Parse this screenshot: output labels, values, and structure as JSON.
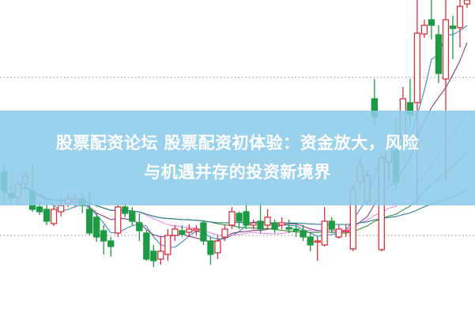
{
  "banner": {
    "title_line1": "股票配资论坛 股票配资初体验：资金放大，风险",
    "title_line2": "与机遇并存的投资新境界",
    "background_color": "#8cccea"
  },
  "chart_data": {
    "type": "candlestick",
    "title": "",
    "xlabel": "",
    "ylabel": "",
    "ylim": [
      0,
      40
    ],
    "grid": false,
    "up_color": "#d9323c",
    "down_color": "#1e9a45",
    "reference_levels": [
      30.2,
      10.2
    ],
    "moving_averages": [
      {
        "period": 5,
        "color": "#3f8fb5"
      },
      {
        "period": 10,
        "color": "#8a3a7e"
      },
      {
        "period": 20,
        "color": "#e38fe0"
      },
      {
        "period": 30,
        "color": "#3a8f3a"
      },
      {
        "period": 60,
        "color": "#2f7f8f"
      }
    ],
    "candles": [
      {
        "o": 18.2,
        "c": 15.8,
        "h": 19.2,
        "l": 14.2
      },
      {
        "o": 15.5,
        "c": 15.0,
        "h": 16.5,
        "l": 14.4
      },
      {
        "o": 15.0,
        "c": 16.7,
        "h": 17.2,
        "l": 14.2
      },
      {
        "o": 16.8,
        "c": 17.8,
        "h": 18.2,
        "l": 16.0
      },
      {
        "o": 15.8,
        "c": 13.5,
        "h": 19.2,
        "l": 13.2
      },
      {
        "o": 13.8,
        "c": 13.2,
        "h": 14.5,
        "l": 12.8
      },
      {
        "o": 13.5,
        "c": 12.0,
        "h": 14.2,
        "l": 11.5
      },
      {
        "o": 11.7,
        "c": 13.5,
        "h": 14.2,
        "l": 11.4
      },
      {
        "o": 13.2,
        "c": 14.0,
        "h": 15.0,
        "l": 12.6
      },
      {
        "o": 14.2,
        "c": 14.8,
        "h": 15.5,
        "l": 13.8
      },
      {
        "o": 14.4,
        "c": 14.8,
        "h": 15.4,
        "l": 13.8
      },
      {
        "o": 14.8,
        "c": 14.0,
        "h": 15.7,
        "l": 13.0
      },
      {
        "o": 13.5,
        "c": 10.5,
        "h": 15.7,
        "l": 10.2
      },
      {
        "o": 12.5,
        "c": 10.0,
        "h": 13.0,
        "l": 9.4
      },
      {
        "o": 10.8,
        "c": 9.5,
        "h": 11.5,
        "l": 7.8
      },
      {
        "o": 9.5,
        "c": 8.8,
        "h": 10.0,
        "l": 7.5
      },
      {
        "o": 10.5,
        "c": 13.8,
        "h": 14.2,
        "l": 10.0
      },
      {
        "o": 13.8,
        "c": 13.0,
        "h": 14.2,
        "l": 12.5
      },
      {
        "o": 13.2,
        "c": 12.0,
        "h": 13.8,
        "l": 11.5
      },
      {
        "o": 11.8,
        "c": 10.8,
        "h": 13.0,
        "l": 9.5
      },
      {
        "o": 10.5,
        "c": 7.2,
        "h": 11.0,
        "l": 7.0
      },
      {
        "o": 8.2,
        "c": 7.0,
        "h": 9.0,
        "l": 6.2
      },
      {
        "o": 7.2,
        "c": 8.2,
        "h": 10.0,
        "l": 6.5
      },
      {
        "o": 7.8,
        "c": 10.2,
        "h": 11.0,
        "l": 7.0
      },
      {
        "o": 10.2,
        "c": 11.0,
        "h": 11.5,
        "l": 9.5
      },
      {
        "o": 10.8,
        "c": 10.4,
        "h": 11.5,
        "l": 10.0
      },
      {
        "o": 10.6,
        "c": 11.0,
        "h": 11.6,
        "l": 10.0
      },
      {
        "o": 10.8,
        "c": 11.0,
        "h": 11.5,
        "l": 10.2
      },
      {
        "o": 11.8,
        "c": 9.5,
        "h": 12.0,
        "l": 9.0
      },
      {
        "o": 9.5,
        "c": 7.8,
        "h": 10.0,
        "l": 6.5
      },
      {
        "o": 8.0,
        "c": 9.5,
        "h": 10.2,
        "l": 7.2
      },
      {
        "o": 10.0,
        "c": 11.0,
        "h": 11.5,
        "l": 9.5
      },
      {
        "o": 11.5,
        "c": 13.2,
        "h": 13.8,
        "l": 11.0
      },
      {
        "o": 13.0,
        "c": 12.0,
        "h": 13.2,
        "l": 11.0
      },
      {
        "o": 13.2,
        "c": 11.5,
        "h": 14.5,
        "l": 11.0
      },
      {
        "o": 11.5,
        "c": 11.8,
        "h": 12.2,
        "l": 11.0
      },
      {
        "o": 12.0,
        "c": 11.0,
        "h": 14.5,
        "l": 10.5
      },
      {
        "o": 11.5,
        "c": 12.5,
        "h": 13.5,
        "l": 11.0
      },
      {
        "o": 11.8,
        "c": 11.0,
        "h": 12.2,
        "l": 10.5
      },
      {
        "o": 11.5,
        "c": 11.8,
        "h": 12.5,
        "l": 11.0
      },
      {
        "o": 11.2,
        "c": 11.0,
        "h": 12.2,
        "l": 10.5
      },
      {
        "o": 11.0,
        "c": 10.8,
        "h": 11.7,
        "l": 10.0
      },
      {
        "o": 10.8,
        "c": 10.0,
        "h": 11.5,
        "l": 9.5
      },
      {
        "o": 10.0,
        "c": 9.0,
        "h": 10.5,
        "l": 8.2
      },
      {
        "o": 9.5,
        "c": 9.5,
        "h": 10.0,
        "l": 7.0
      },
      {
        "o": 9.0,
        "c": 12.0,
        "h": 13.8,
        "l": 8.8
      },
      {
        "o": 12.0,
        "c": 11.0,
        "h": 12.5,
        "l": 10.5
      },
      {
        "o": 10.0,
        "c": 11.0,
        "h": 11.5,
        "l": 9.8
      },
      {
        "o": 10.7,
        "c": 10.8,
        "h": 11.5,
        "l": 10.0
      },
      {
        "o": 8.5,
        "c": 16.0,
        "h": 16.5,
        "l": 8.2
      },
      {
        "o": 17.0,
        "c": 19.0,
        "h": 20.0,
        "l": 16.0
      },
      {
        "o": 14.5,
        "c": 17.8,
        "h": 18.5,
        "l": 14.0
      },
      {
        "o": 27.5,
        "c": 25.2,
        "h": 30.0,
        "l": 24.0
      },
      {
        "o": 8.4,
        "c": 20.0,
        "h": 20.5,
        "l": 8.2
      },
      {
        "o": 19.5,
        "c": 21.5,
        "h": 22.2,
        "l": 17.0
      },
      {
        "o": 21.0,
        "c": 17.0,
        "h": 25.0,
        "l": 16.0
      },
      {
        "o": 22.5,
        "c": 27.5,
        "h": 29.0,
        "l": 22.0
      },
      {
        "o": 27.0,
        "c": 25.5,
        "h": 30.0,
        "l": 24.0
      },
      {
        "o": 27.0,
        "c": 35.8,
        "h": 40.0,
        "l": 14.0
      },
      {
        "o": 35.7,
        "c": 36.8,
        "h": 37.5,
        "l": 35.2
      },
      {
        "o": 37.5,
        "c": 36.8,
        "h": 40.0,
        "l": 35.0
      },
      {
        "o": 35.6,
        "c": 30.7,
        "h": 36.8,
        "l": 29.5
      },
      {
        "o": 30.0,
        "c": 37.5,
        "h": 40.0,
        "l": 17.0
      },
      {
        "o": 36.7,
        "c": 36.4,
        "h": 38.0,
        "l": 32.5
      },
      {
        "o": 36.5,
        "c": 39.2,
        "h": 40.0,
        "l": 34.0
      },
      {
        "o": 39.5,
        "c": 40.0,
        "h": 40.0,
        "l": 39.0
      }
    ]
  }
}
